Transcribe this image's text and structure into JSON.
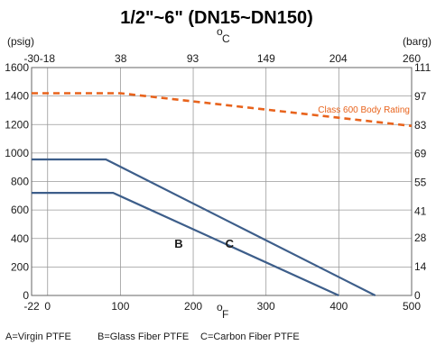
{
  "chart_data": {
    "type": "line",
    "title": "1/2\"~6\"  (DN15~DN150)",
    "bottom_axis": {
      "unit": "F",
      "ticks": [
        -22,
        0,
        100,
        200,
        300,
        400,
        500
      ],
      "range": [
        -22,
        500
      ]
    },
    "top_axis": {
      "unit": "C",
      "ticks": [
        -30,
        -18,
        38,
        93,
        149,
        204,
        260
      ],
      "range": [
        -30,
        260
      ]
    },
    "left_axis": {
      "unit": "(psig)",
      "ticks": [
        0,
        200,
        400,
        600,
        800,
        1000,
        1200,
        1400,
        1600
      ],
      "range": [
        0,
        1600
      ]
    },
    "right_axis": {
      "unit": "(barg)",
      "ticks": [
        0,
        14,
        28,
        41,
        55,
        69,
        83,
        97,
        111
      ],
      "range": [
        0,
        111
      ]
    },
    "grid": true,
    "series": [
      {
        "name": "B",
        "x": [
          -22,
          90,
          400
        ],
        "y": [
          720,
          720,
          0
        ],
        "color": "#3d5e8a"
      },
      {
        "name": "C",
        "x": [
          -22,
          80,
          450
        ],
        "y": [
          955,
          955,
          0
        ],
        "color": "#3d5e8a"
      },
      {
        "name": "Class 600 Body Rating",
        "x": [
          -22,
          100,
          500
        ],
        "y": [
          1420,
          1420,
          1190
        ],
        "color": "#e8631c",
        "dashed": true
      }
    ],
    "annotations": [
      {
        "text": "B",
        "x": 180,
        "y": 360
      },
      {
        "text": "C",
        "x": 250,
        "y": 360
      },
      {
        "text": "Class 600 Body Rating",
        "x": 500,
        "y": 1310
      }
    ],
    "legend": [
      "A=Virgin PTFE",
      "B=Glass Fiber PTFE",
      "C=Carbon Fiber PTFE"
    ]
  }
}
